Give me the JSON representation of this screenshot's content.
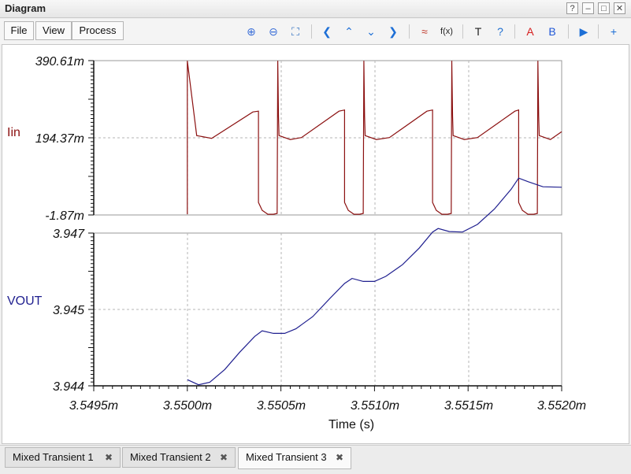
{
  "window": {
    "title": "Diagram",
    "controls": [
      "?",
      "–",
      "□",
      "✕"
    ]
  },
  "menu": {
    "file": "File",
    "view": "View",
    "process": "Process"
  },
  "toolbar_icons": [
    {
      "name": "zoom-in-icon",
      "glyph": "⊕",
      "color": "#3b6fd8"
    },
    {
      "name": "zoom-out-icon",
      "glyph": "⊖",
      "color": "#3b6fd8"
    },
    {
      "name": "fit-view-icon",
      "glyph": "⛶",
      "color": "#2f6fc0"
    },
    {
      "name": "arrow-left-icon",
      "glyph": "❮",
      "color": "#1e6fd6"
    },
    {
      "name": "arrow-up-icon",
      "glyph": "⌃",
      "color": "#1e6fd6"
    },
    {
      "name": "arrow-down-icon",
      "glyph": "⌄",
      "color": "#1e6fd6"
    },
    {
      "name": "arrow-right-icon",
      "glyph": "❯",
      "color": "#1e6fd6"
    },
    {
      "name": "waveform-icon",
      "glyph": "≈",
      "color": "#c0392b"
    },
    {
      "name": "function-icon",
      "glyph": "f(x)",
      "color": "#222222"
    },
    {
      "name": "text-icon",
      "glyph": "T",
      "color": "#222222"
    },
    {
      "name": "help-comment-icon",
      "glyph": "?",
      "color": "#1f6fd1"
    },
    {
      "name": "cursor-a-icon",
      "glyph": "A",
      "color": "#d62020"
    },
    {
      "name": "cursor-b-icon",
      "glyph": "B",
      "color": "#1e56d6"
    },
    {
      "name": "run-icon",
      "glyph": "▶",
      "color": "#1e6fd6"
    },
    {
      "name": "add-window-icon",
      "glyph": "+",
      "color": "#1e6fd6"
    }
  ],
  "tabs": [
    {
      "label": "Mixed Transient 1",
      "close": "✖",
      "active": false
    },
    {
      "label": "Mixed Transient 2",
      "close": "✖",
      "active": false
    },
    {
      "label": "Mixed Transient 3",
      "close": "✖",
      "active": true
    }
  ],
  "chart_data": [
    {
      "type": "line",
      "ylabel": "Iin",
      "yticks": [
        "390.61m",
        "194.37m",
        "-1.87m"
      ],
      "ylim": [
        -0.00187,
        0.39061
      ],
      "xlim": [
        3.5495,
        3.552
      ],
      "grid": true,
      "color": "#8b1010",
      "series": [
        {
          "x": [
            3.55,
            3.55,
            3.55005,
            3.55013,
            3.55035,
            3.55038,
            3.55038,
            3.5504,
            3.55043,
            3.55046,
            3.55048,
            3.550483,
            3.550487,
            3.55049,
            3.55055,
            3.55061,
            3.55081,
            3.55084,
            3.55084,
            3.55086,
            3.55089,
            3.55092,
            3.55094,
            3.550943,
            3.550947,
            3.55095,
            3.55101,
            3.55108,
            3.55128,
            3.55131,
            3.55131,
            3.55133,
            3.55136,
            3.55139,
            3.55141,
            3.551413,
            3.551417,
            3.55142,
            3.55148,
            3.55155,
            3.55175,
            3.55177,
            3.55177,
            3.55179,
            3.55182,
            3.55185,
            3.55187,
            3.551873,
            3.551877,
            3.55188,
            3.55194,
            3.552
          ],
          "y": [
            0.0,
            0.39,
            0.2,
            0.193,
            0.26,
            0.262,
            0.03,
            0.01,
            0.0,
            0.0,
            0.002,
            0.39,
            0.25,
            0.2,
            0.19,
            0.195,
            0.262,
            0.265,
            0.03,
            0.01,
            0.0,
            0.0,
            0.002,
            0.39,
            0.25,
            0.2,
            0.19,
            0.195,
            0.262,
            0.265,
            0.03,
            0.01,
            0.0,
            0.0,
            0.002,
            0.39,
            0.25,
            0.2,
            0.19,
            0.195,
            0.262,
            0.265,
            0.03,
            0.01,
            0.0,
            0.0,
            0.002,
            0.39,
            0.25,
            0.2,
            0.19,
            0.21
          ]
        }
      ]
    },
    {
      "type": "line",
      "ylabel": "VOUT",
      "yticks": [
        "3.947",
        "3.945",
        "3.944"
      ],
      "ylim": [
        3.944,
        3.947
      ],
      "xlim": [
        3.5495,
        3.552
      ],
      "xticks": [
        "3.5495m",
        "3.5500m",
        "3.5505m",
        "3.5510m",
        "3.5515m",
        "3.5520m"
      ],
      "xlabel": "Time (s)",
      "grid": true,
      "color": "#1f1f8f",
      "series": [
        {
          "x": [
            3.55,
            3.55006,
            3.55012,
            3.5502,
            3.55028,
            3.55036,
            3.5504,
            3.55046,
            3.55052,
            3.55058,
            3.55067,
            3.55076,
            3.55084,
            3.55088,
            3.55094,
            3.551,
            3.55106,
            3.55115,
            3.55124,
            3.55131,
            3.55134,
            3.5514,
            3.55147,
            3.55155,
            3.55164,
            3.55173,
            3.55177,
            3.55182,
            3.5519,
            3.552
          ],
          "y": [
            3.94412,
            3.94402,
            3.94407,
            3.94432,
            3.94466,
            3.94497,
            3.94508,
            3.94503,
            3.94503,
            3.94512,
            3.94536,
            3.94571,
            3.94601,
            3.94611,
            3.94605,
            3.94605,
            3.94615,
            3.94638,
            3.94671,
            3.94702,
            3.94709,
            3.94703,
            3.94702,
            3.94717,
            3.94747,
            3.94786,
            3.94808,
            3.94801,
            3.94791,
            3.9479
          ]
        }
      ]
    }
  ]
}
